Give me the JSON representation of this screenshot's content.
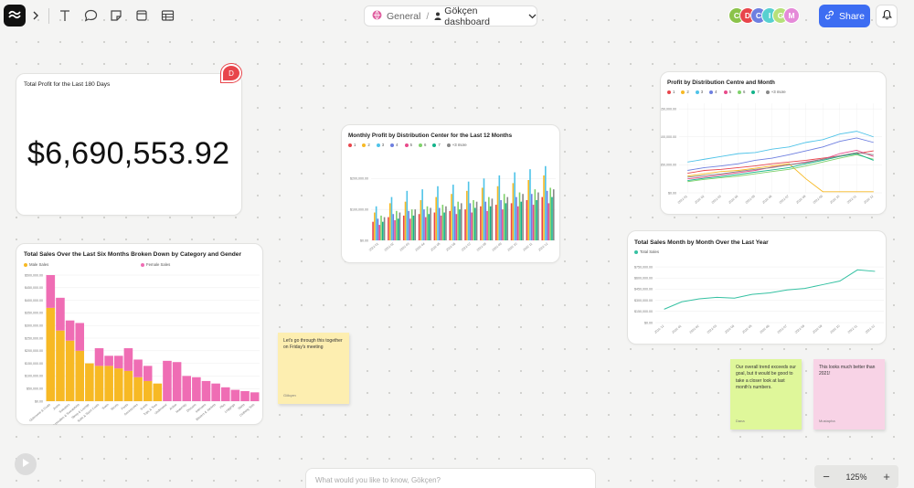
{
  "toolbar": {
    "crumb_space": "General",
    "crumb_page": "Gökçen dashboard",
    "share_label": "Share",
    "avatars": [
      {
        "letter": "C",
        "color": "#8bc34a"
      },
      {
        "letter": "D",
        "color": "#e8454b"
      },
      {
        "letter": "C",
        "color": "#6e7fe0"
      },
      {
        "letter": "I",
        "color": "#57d0d0"
      },
      {
        "letter": "G",
        "color": "#b6e07a"
      },
      {
        "letter": "M",
        "color": "#e58ad8"
      }
    ]
  },
  "cards": {
    "profit_title": "Total Profit for the Last 180 Days",
    "profit_value": "$6,690,553.92",
    "comment_letter": "D",
    "monthly_title": "Monthly Profit by Distribution Center for the Last 12 Months",
    "monthly_legend": [
      "1",
      "2",
      "3",
      "4",
      "5",
      "6",
      "7",
      "+3 more"
    ],
    "dcm_title": "Profit by Distribution Centre and Month",
    "dcm_legend": [
      "1",
      "2",
      "3",
      "4",
      "5",
      "6",
      "7",
      "+3 more"
    ],
    "sales6_title": "Total Sales Over the Last Six Months Broken Down by Category and Gender",
    "sales6_legend": [
      "Male Sales",
      "Female Sales"
    ],
    "year_title": "Total Sales Month by Month Over the Last Year",
    "year_legend": [
      "Total Sales"
    ]
  },
  "stickies": [
    {
      "text": "Let's go through this together on Friday's meeting",
      "author": "Gökçen",
      "color": "#fdeeb0"
    },
    {
      "text": "Our overall trend exceeds our goal, but it would be good to take a closer look at last month's numbers.",
      "author": "Dana",
      "color": "#dff79a"
    },
    {
      "text": "This looks much better than 2021!",
      "author": "Mustapha",
      "color": "#f8d3e6"
    }
  ],
  "ask_placeholder": "What would you like to know, Gökçen?",
  "zoom_level": "125%",
  "colors": {
    "series": [
      "#e8454b",
      "#f7b924",
      "#4fc3e8",
      "#6e7fe0",
      "#e84a8a",
      "#7fd16b",
      "#13b38a",
      "#888888"
    ],
    "male": "#f7b924",
    "female": "#ef6db4",
    "teal": "#35c1a2"
  },
  "chart_data": [
    {
      "type": "bar",
      "title": "Monthly Profit by Distribution Center for the Last 12 Months",
      "y_tick_labels": [
        "$0.00",
        "$100,000.00",
        "$200,000.00"
      ],
      "ylim": [
        0,
        260000
      ],
      "categories": [
        "2022-01",
        "2022-02",
        "2022-03",
        "2022-04",
        "2022-05",
        "2022-06",
        "2022-07",
        "2022-08",
        "2022-09",
        "2022-10",
        "2022-11",
        "2022-12"
      ],
      "series": [
        {
          "name": "1",
          "values": [
            60000,
            75000,
            80000,
            85000,
            90000,
            95000,
            100000,
            110000,
            115000,
            120000,
            130000,
            140000
          ]
        },
        {
          "name": "2",
          "values": [
            90000,
            120000,
            125000,
            130000,
            140000,
            150000,
            160000,
            170000,
            175000,
            185000,
            195000,
            210000
          ]
        },
        {
          "name": "3",
          "values": [
            110000,
            140000,
            160000,
            165000,
            175000,
            180000,
            190000,
            200000,
            210000,
            220000,
            230000,
            240000
          ]
        },
        {
          "name": "4",
          "values": [
            70000,
            85000,
            95000,
            100000,
            105000,
            110000,
            120000,
            125000,
            130000,
            140000,
            150000,
            160000
          ]
        },
        {
          "name": "5",
          "values": [
            50000,
            65000,
            70000,
            75000,
            80000,
            85000,
            90000,
            95000,
            100000,
            110000,
            115000,
            120000
          ]
        },
        {
          "name": "6",
          "values": [
            80000,
            95000,
            100000,
            110000,
            115000,
            125000,
            130000,
            140000,
            150000,
            155000,
            165000,
            170000
          ]
        },
        {
          "name": "7",
          "values": [
            60000,
            70000,
            80000,
            85000,
            90000,
            100000,
            105000,
            110000,
            120000,
            125000,
            130000,
            140000
          ]
        },
        {
          "name": "+3 more",
          "values": [
            75000,
            90000,
            100000,
            105000,
            110000,
            120000,
            125000,
            135000,
            140000,
            150000,
            155000,
            165000
          ]
        }
      ]
    },
    {
      "type": "line",
      "title": "Profit by Distribution Centre and Month",
      "y_tick_labels": [
        "$0.00",
        "$50,000.00",
        "$100,000.00",
        "$150,000.00"
      ],
      "ylim": [
        0,
        160000
      ],
      "categories": [
        "2022-01",
        "2022-02",
        "2022-03",
        "2022-04",
        "2022-05",
        "2022-06",
        "2022-07",
        "2022-08",
        "2022-09",
        "2022-10",
        "2022-11",
        "2022-12"
      ],
      "series": [
        {
          "name": "1",
          "values": [
            35000,
            40000,
            42000,
            45000,
            48000,
            52000,
            55000,
            58000,
            62000,
            66000,
            70000,
            75000
          ]
        },
        {
          "name": "2",
          "values": [
            30000,
            34000,
            38000,
            40000,
            44000,
            48000,
            52000,
            25000,
            2000,
            2000,
            2000,
            2000
          ]
        },
        {
          "name": "3",
          "values": [
            55000,
            60000,
            65000,
            70000,
            72000,
            78000,
            82000,
            90000,
            95000,
            105000,
            110000,
            100000
          ]
        },
        {
          "name": "4",
          "values": [
            40000,
            45000,
            48000,
            52000,
            58000,
            62000,
            68000,
            75000,
            82000,
            92000,
            98000,
            90000
          ]
        },
        {
          "name": "5",
          "values": [
            25000,
            28000,
            32000,
            36000,
            40000,
            46000,
            50000,
            55000,
            60000,
            70000,
            76000,
            65000
          ]
        },
        {
          "name": "6",
          "values": [
            20000,
            24000,
            27000,
            30000,
            34000,
            38000,
            42000,
            48000,
            55000,
            62000,
            68000,
            60000
          ]
        },
        {
          "name": "7",
          "values": [
            22000,
            26000,
            29000,
            33000,
            37000,
            41000,
            45000,
            52000,
            58000,
            65000,
            70000,
            58000
          ]
        },
        {
          "name": "+3 more",
          "values": [
            28000,
            31000,
            34000,
            38000,
            42000,
            45000,
            50000,
            54000,
            60000,
            66000,
            72000,
            68000
          ]
        }
      ]
    },
    {
      "type": "bar",
      "stacked": true,
      "title": "Total Sales Over the Last Six Months Broken Down by Category and Gender",
      "y_tick_labels": [
        "$0.00",
        "$50,000.00",
        "$100,000.00",
        "$150,000.00",
        "$200,000.00",
        "$250,000.00",
        "$300,000.00",
        "$350,000.00",
        "$400,000.00",
        "$450,000.00",
        "$500,000.00"
      ],
      "ylim": [
        0,
        500000
      ],
      "categories": [
        "Outerwear & Coats",
        "Jeans",
        "Sweaters",
        "Fashion Hoodies & Sweatshirts",
        "Sleep & Lounge",
        "Suits & Sport Coats",
        "Swim",
        "Shorts",
        "Pants",
        "Accessories",
        "Socks",
        "Tops & Tees",
        "Underwear",
        "Active",
        "Maternity",
        "Dresses",
        "Intimates",
        "Blazers & Jackets",
        "Plus",
        "Leggings",
        "Skirts",
        "Clothing Sets"
      ],
      "series": [
        {
          "name": "Male Sales",
          "values": [
            370000,
            280000,
            240000,
            200000,
            150000,
            140000,
            140000,
            130000,
            120000,
            95000,
            80000,
            70000,
            0,
            0,
            0,
            0,
            0,
            0,
            0,
            0,
            0,
            0
          ]
        },
        {
          "name": "Female Sales",
          "values": [
            130000,
            130000,
            80000,
            110000,
            0,
            70000,
            40000,
            50000,
            90000,
            70000,
            60000,
            0,
            160000,
            155000,
            100000,
            95000,
            80000,
            70000,
            55000,
            45000,
            40000,
            35000
          ]
        }
      ]
    },
    {
      "type": "line",
      "title": "Total Sales Month by Month Over the Last Year",
      "y_tick_labels": [
        "$0.00",
        "$150,000.00",
        "$300,000.00",
        "$450,000.00",
        "$600,000.00",
        "$750,000.00"
      ],
      "ylim": [
        0,
        800000
      ],
      "categories": [
        "2021-12",
        "2022-01",
        "2022-02",
        "2022-03",
        "2022-04",
        "2022-05",
        "2022-06",
        "2022-07",
        "2022-08",
        "2022-09",
        "2022-10",
        "2022-11",
        "2022-12"
      ],
      "series": [
        {
          "name": "Total Sales",
          "values": [
            180000,
            280000,
            320000,
            340000,
            330000,
            380000,
            400000,
            440000,
            460000,
            510000,
            560000,
            710000,
            690000
          ]
        }
      ]
    }
  ]
}
